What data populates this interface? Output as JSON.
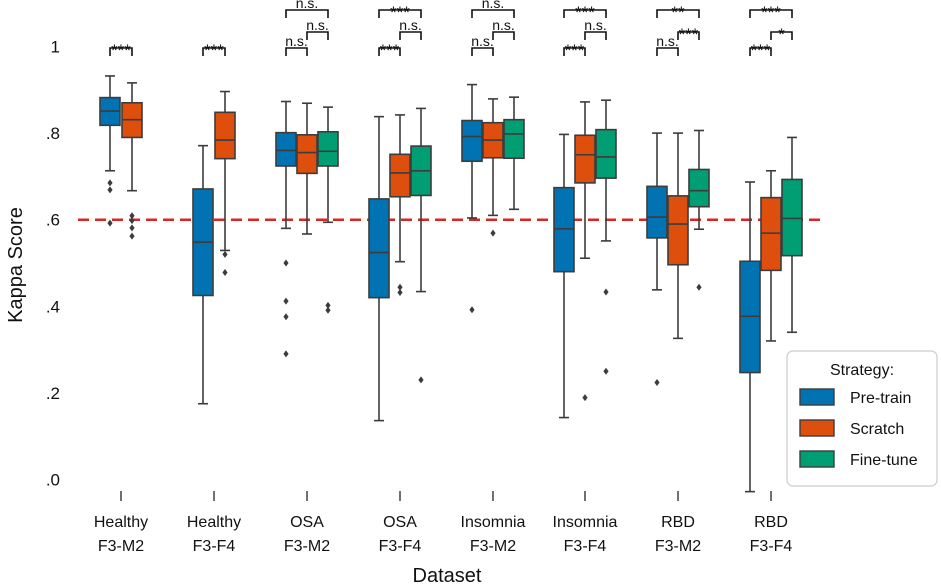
{
  "chart_data": {
    "type": "box",
    "ylabel": "Kappa Score",
    "xlabel": "Dataset",
    "ylim": [
      0,
      1
    ],
    "yticks": [
      {
        "v": 1.0,
        "label": "1"
      },
      {
        "v": 0.8,
        "label": ".8"
      },
      {
        "v": 0.6,
        "label": ".6"
      },
      {
        "v": 0.4,
        "label": ".4"
      },
      {
        "v": 0.2,
        "label": ".2"
      },
      {
        "v": 0.0,
        "label": ".0"
      }
    ],
    "reference_line": {
      "value": 0.6,
      "color": "#d62728",
      "style": "dashed"
    },
    "legend": {
      "title": "Strategy:",
      "position": "bottom-right"
    },
    "series": [
      {
        "name": "Pre-train",
        "color": "#0173b2"
      },
      {
        "name": "Scratch",
        "color": "#de4f0e"
      },
      {
        "name": "Fine-tune",
        "color": "#029e73"
      }
    ],
    "categories": [
      {
        "label_line1": "Healthy",
        "label_line2": "F3-M2",
        "boxes": [
          {
            "series": "Pre-train",
            "min": 0.713,
            "q1": 0.818,
            "median": 0.851,
            "q3": 0.882,
            "max": 0.932,
            "outliers": [
              0.685,
              0.669,
              0.592
            ]
          },
          {
            "series": "Scratch",
            "min": 0.667,
            "q1": 0.79,
            "median": 0.831,
            "q3": 0.87,
            "max": 0.916,
            "outliers": [
              0.609,
              0.598,
              0.581,
              0.562
            ]
          }
        ],
        "brackets": [
          {
            "pair": [
              "Pre-train",
              "Scratch"
            ],
            "level": 0,
            "label": "***"
          }
        ]
      },
      {
        "label_line1": "Healthy",
        "label_line2": "F3-F4",
        "boxes": [
          {
            "series": "Pre-train",
            "min": 0.175,
            "q1": 0.425,
            "median": 0.548,
            "q3": 0.671,
            "max": 0.771,
            "outliers": []
          },
          {
            "series": "Scratch",
            "min": 0.529,
            "q1": 0.741,
            "median": 0.784,
            "q3": 0.848,
            "max": 0.896,
            "outliers": [
              0.52,
              0.478
            ]
          }
        ],
        "brackets": [
          {
            "pair": [
              "Pre-train",
              "Scratch"
            ],
            "level": 0,
            "label": "***"
          }
        ]
      },
      {
        "label_line1": "OSA",
        "label_line2": "F3-M2",
        "boxes": [
          {
            "series": "Pre-train",
            "min": 0.58,
            "q1": 0.724,
            "median": 0.76,
            "q3": 0.801,
            "max": 0.873,
            "outliers": [
              0.5,
              0.412,
              0.376,
              0.29
            ]
          },
          {
            "series": "Scratch",
            "min": 0.567,
            "q1": 0.707,
            "median": 0.755,
            "q3": 0.796,
            "max": 0.869,
            "outliers": []
          },
          {
            "series": "Fine-tune",
            "min": 0.594,
            "q1": 0.724,
            "median": 0.758,
            "q3": 0.803,
            "max": 0.86,
            "outliers": [
              0.402,
              0.391
            ]
          }
        ],
        "brackets": [
          {
            "pair": [
              "Pre-train",
              "Scratch"
            ],
            "level": 0,
            "label": "n.s."
          },
          {
            "pair": [
              "Scratch",
              "Fine-tune"
            ],
            "level": 1,
            "label": "n.s."
          },
          {
            "pair": [
              "Pre-train",
              "Fine-tune"
            ],
            "level": 2,
            "label": "n.s."
          }
        ]
      },
      {
        "label_line1": "OSA",
        "label_line2": "F3-F4",
        "boxes": [
          {
            "series": "Pre-train",
            "min": 0.136,
            "q1": 0.42,
            "median": 0.524,
            "q3": 0.648,
            "max": 0.838,
            "outliers": []
          },
          {
            "series": "Scratch",
            "min": 0.503,
            "q1": 0.653,
            "median": 0.708,
            "q3": 0.751,
            "max": 0.842,
            "outliers": [
              0.444,
              0.432
            ]
          },
          {
            "series": "Fine-tune",
            "min": 0.434,
            "q1": 0.656,
            "median": 0.713,
            "q3": 0.77,
            "max": 0.857,
            "outliers": [
              0.23
            ]
          }
        ],
        "brackets": [
          {
            "pair": [
              "Pre-train",
              "Scratch"
            ],
            "level": 0,
            "label": "***"
          },
          {
            "pair": [
              "Scratch",
              "Fine-tune"
            ],
            "level": 1,
            "label": "n.s."
          },
          {
            "pair": [
              "Pre-train",
              "Fine-tune"
            ],
            "level": 2,
            "label": "***"
          }
        ]
      },
      {
        "label_line1": "Insomnia",
        "label_line2": "F3-M2",
        "boxes": [
          {
            "series": "Pre-train",
            "min": 0.604,
            "q1": 0.735,
            "median": 0.792,
            "q3": 0.829,
            "max": 0.912,
            "outliers": [
              0.392
            ]
          },
          {
            "series": "Scratch",
            "min": 0.61,
            "q1": 0.743,
            "median": 0.784,
            "q3": 0.824,
            "max": 0.879,
            "outliers": [
              0.569
            ]
          },
          {
            "series": "Fine-tune",
            "min": 0.624,
            "q1": 0.742,
            "median": 0.798,
            "q3": 0.831,
            "max": 0.883,
            "outliers": []
          }
        ],
        "brackets": [
          {
            "pair": [
              "Pre-train",
              "Scratch"
            ],
            "level": 0,
            "label": "n.s."
          },
          {
            "pair": [
              "Scratch",
              "Fine-tune"
            ],
            "level": 1,
            "label": "n.s."
          },
          {
            "pair": [
              "Pre-train",
              "Fine-tune"
            ],
            "level": 2,
            "label": "n.s."
          }
        ]
      },
      {
        "label_line1": "Insomnia",
        "label_line2": "F3-F4",
        "boxes": [
          {
            "series": "Pre-train",
            "min": 0.143,
            "q1": 0.48,
            "median": 0.579,
            "q3": 0.674,
            "max": 0.797,
            "outliers": []
          },
          {
            "series": "Scratch",
            "min": 0.511,
            "q1": 0.685,
            "median": 0.75,
            "q3": 0.795,
            "max": 0.872,
            "outliers": [
              0.189
            ]
          },
          {
            "series": "Fine-tune",
            "min": 0.551,
            "q1": 0.696,
            "median": 0.745,
            "q3": 0.808,
            "max": 0.876,
            "outliers": [
              0.433,
              0.25
            ]
          }
        ],
        "brackets": [
          {
            "pair": [
              "Pre-train",
              "Scratch"
            ],
            "level": 0,
            "label": "***"
          },
          {
            "pair": [
              "Scratch",
              "Fine-tune"
            ],
            "level": 1,
            "label": "n.s."
          },
          {
            "pair": [
              "Pre-train",
              "Fine-tune"
            ],
            "level": 2,
            "label": "***"
          }
        ]
      },
      {
        "label_line1": "RBD",
        "label_line2": "F3-M2",
        "boxes": [
          {
            "series": "Pre-train",
            "min": 0.438,
            "q1": 0.558,
            "median": 0.606,
            "q3": 0.677,
            "max": 0.8,
            "outliers": [
              0.224
            ]
          },
          {
            "series": "Scratch",
            "min": 0.326,
            "q1": 0.496,
            "median": 0.59,
            "q3": 0.655,
            "max": 0.8,
            "outliers": []
          },
          {
            "series": "Fine-tune",
            "min": 0.578,
            "q1": 0.63,
            "median": 0.667,
            "q3": 0.716,
            "max": 0.806,
            "outliers": [
              0.444
            ]
          }
        ],
        "brackets": [
          {
            "pair": [
              "Pre-train",
              "Scratch"
            ],
            "level": 0,
            "label": "n.s."
          },
          {
            "pair": [
              "Scratch",
              "Fine-tune"
            ],
            "level": 1,
            "label": "***"
          },
          {
            "pair": [
              "Pre-train",
              "Fine-tune"
            ],
            "level": 2,
            "label": "**"
          }
        ]
      },
      {
        "label_line1": "RBD",
        "label_line2": "F3-F4",
        "boxes": [
          {
            "series": "Pre-train",
            "min": -0.028,
            "q1": 0.247,
            "median": 0.377,
            "q3": 0.504,
            "max": 0.687,
            "outliers": []
          },
          {
            "series": "Scratch",
            "min": 0.32,
            "q1": 0.483,
            "median": 0.569,
            "q3": 0.651,
            "max": 0.713,
            "outliers": []
          },
          {
            "series": "Fine-tune",
            "min": 0.34,
            "q1": 0.517,
            "median": 0.603,
            "q3": 0.693,
            "max": 0.79,
            "outliers": []
          }
        ],
        "brackets": [
          {
            "pair": [
              "Pre-train",
              "Scratch"
            ],
            "level": 0,
            "label": "***"
          },
          {
            "pair": [
              "Scratch",
              "Fine-tune"
            ],
            "level": 1,
            "label": "*"
          },
          {
            "pair": [
              "Pre-train",
              "Fine-tune"
            ],
            "level": 2,
            "label": "***"
          }
        ]
      }
    ]
  }
}
